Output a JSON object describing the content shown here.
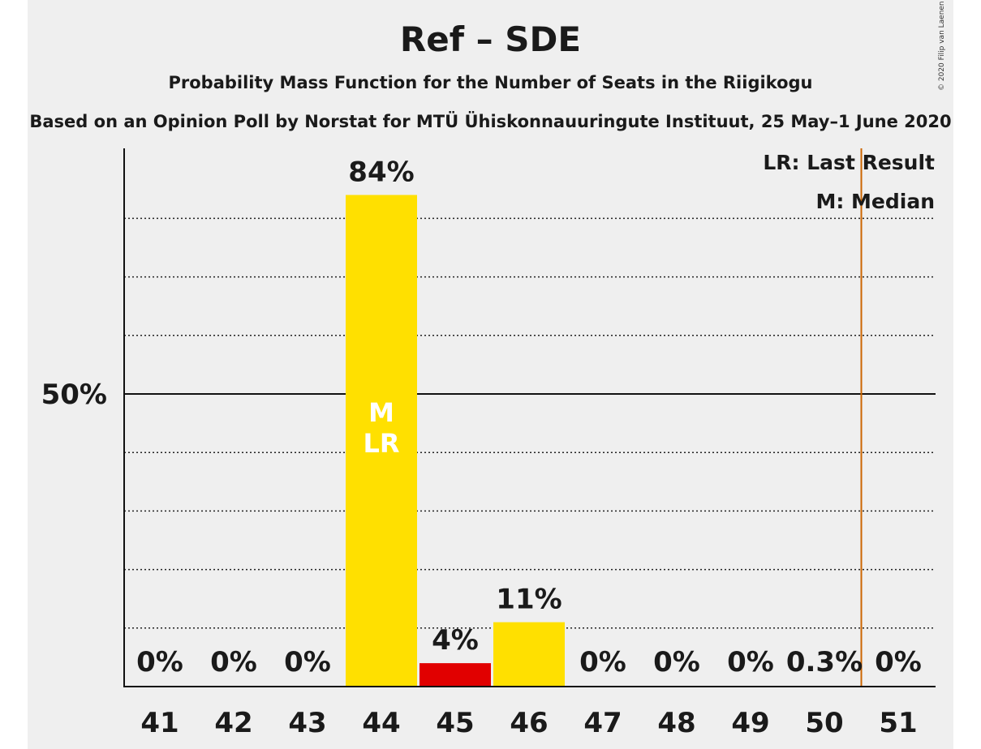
{
  "chart_data": {
    "type": "bar",
    "title": "Ref – SDE",
    "subtitle": "Probability Mass Function for the Number of Seats in the Riigikogu",
    "subtitle2": "Based on an Opinion Poll by Norstat for MTÜ Ühiskonnauuringute Instituut, 25 May–1 June 2020",
    "copyright": "© 2020 Filip van Laenen",
    "categories": [
      "41",
      "42",
      "43",
      "44",
      "45",
      "46",
      "47",
      "48",
      "49",
      "50",
      "51"
    ],
    "values": [
      0,
      0,
      0,
      84,
      4,
      11,
      0,
      0,
      0,
      0.3,
      0
    ],
    "value_labels": [
      "0%",
      "0%",
      "0%",
      "84%",
      "4%",
      "11%",
      "0%",
      "0%",
      "0%",
      "0.3%",
      "0%"
    ],
    "bar_colors": [
      "#FFE000",
      "#FFE000",
      "#FFE000",
      "#FFE000",
      "#E10000",
      "#FFE000",
      "#FFE000",
      "#FFE000",
      "#FFE000",
      "#FFE000",
      "#FFE000"
    ],
    "ylim": [
      0,
      92
    ],
    "y_tick_label": "50%",
    "y_tick_value": 50,
    "gridlines": [
      10,
      20,
      30,
      40,
      60,
      70,
      80
    ],
    "median_seat": "44",
    "last_result_seat": "44",
    "bar_marker_lines": [
      "M",
      "LR"
    ],
    "majority_line_between": [
      "50",
      "51"
    ],
    "majority_line_color": "#CC6600",
    "legend": {
      "lr": "LR: Last Result",
      "m": "M: Median",
      "placement": "top-right"
    }
  }
}
